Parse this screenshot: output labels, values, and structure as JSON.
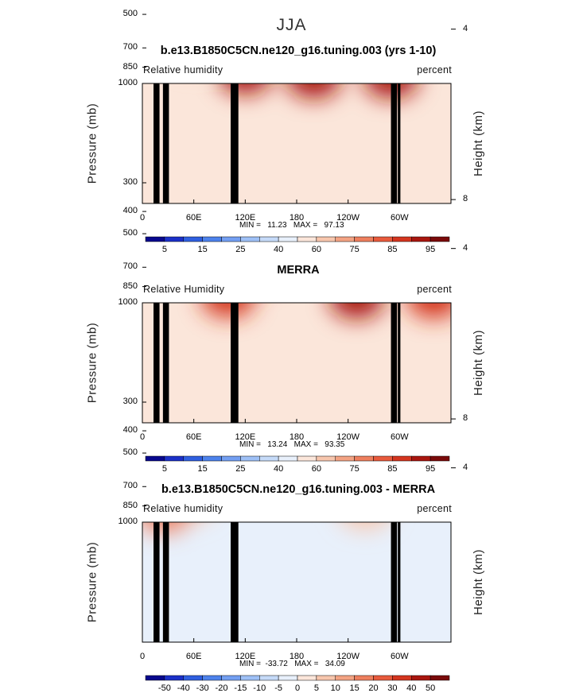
{
  "figure_title": "JJA",
  "colors": {
    "full_scale": [
      "#08088e",
      "#1b30c8",
      "#2f5fe0",
      "#4d82ec",
      "#739ff2",
      "#9ec0f6",
      "#c5daf8",
      "#e8f0fb",
      "#fbe6da",
      "#f7c6ad",
      "#f3a383",
      "#ee7f5e",
      "#e85a3c",
      "#d4351f",
      "#a9160f",
      "#7a0a0a"
    ],
    "diff_scale": [
      "#08088e",
      "#1b30c8",
      "#2f5fe0",
      "#4d82ec",
      "#739ff2",
      "#9ec0f6",
      "#c5daf8",
      "#e8f0fb",
      "#fbe6da",
      "#f7c6ad",
      "#f3a383",
      "#ee7f5e",
      "#e85a3c",
      "#d4351f",
      "#a9160f",
      "#7a0a0a"
    ],
    "topography": "#000000"
  },
  "chart_data": [
    {
      "type": "heatmap",
      "title": "b.e13.B1850C5CN.ne120_g16.tuning.003 (yrs 1-10)",
      "left_label": "Relative humidity",
      "right_label": "percent",
      "ylabel": "Pressure (mb)",
      "ylabel_right": "Height (km)",
      "x_ticks": [
        "0",
        "60E",
        "120E",
        "180",
        "120W",
        "60W"
      ],
      "y_ticks": [
        "300",
        "400",
        "500",
        "700",
        "850",
        "1000"
      ],
      "height_ticks": [
        "8",
        "4"
      ],
      "min_label": "MIN =   11.23   MAX =   97.13",
      "colorbar_labels": [
        "5",
        "15",
        "25",
        "40",
        "60",
        "75",
        "85",
        "95"
      ],
      "features": [
        {
          "lon": 180,
          "p": 420,
          "value": 12
        },
        {
          "lon": 210,
          "p": 430,
          "value": 18
        },
        {
          "lon": 330,
          "p": 380,
          "value": 20
        },
        {
          "lon": 100,
          "p": 450,
          "value": 30
        },
        {
          "lon": 80,
          "p": 500,
          "value": 62
        },
        {
          "lon": 35,
          "p": 550,
          "value": 78
        },
        {
          "lon": 60,
          "p": 700,
          "value": 60
        },
        {
          "lon": 120,
          "p": 900,
          "value": 88
        },
        {
          "lon": 200,
          "p": 940,
          "value": 92
        },
        {
          "lon": 300,
          "p": 600,
          "value": 78
        },
        {
          "lon": 290,
          "p": 940,
          "value": 90
        }
      ]
    },
    {
      "type": "heatmap",
      "title": "MERRA",
      "left_label": "Relative Humidity",
      "right_label": "percent",
      "ylabel": "Pressure (mb)",
      "ylabel_right": "Height (km)",
      "x_ticks": [
        "0",
        "60E",
        "120E",
        "180",
        "120W",
        "60W"
      ],
      "y_ticks": [
        "300",
        "400",
        "500",
        "700",
        "850",
        "1000"
      ],
      "height_ticks": [
        "8",
        "4"
      ],
      "min_label": "MIN =   13.24   MAX =   93.35",
      "colorbar_labels": [
        "5",
        "15",
        "25",
        "40",
        "60",
        "75",
        "85",
        "95"
      ],
      "features": [
        {
          "lon": 235,
          "p": 420,
          "value": 14
        },
        {
          "lon": 345,
          "p": 420,
          "value": 25
        },
        {
          "lon": 45,
          "p": 420,
          "value": 22
        },
        {
          "lon": 20,
          "p": 600,
          "value": 72
        },
        {
          "lon": 140,
          "p": 680,
          "value": 80
        },
        {
          "lon": 110,
          "p": 680,
          "value": 70
        },
        {
          "lon": 290,
          "p": 620,
          "value": 80
        },
        {
          "lon": 100,
          "p": 940,
          "value": 86
        },
        {
          "lon": 250,
          "p": 950,
          "value": 88
        },
        {
          "lon": 340,
          "p": 950,
          "value": 86
        }
      ]
    },
    {
      "type": "heatmap",
      "title": "b.e13.B1850C5CN.ne120_g16.tuning.003 - MERRA",
      "left_label": "Relative humidity",
      "right_label": "percent",
      "ylabel": "Pressure (mb)",
      "ylabel_right": "Height (km)",
      "x_ticks": [
        "0",
        "60E",
        "120E",
        "180",
        "120W",
        "60W"
      ],
      "y_ticks": [
        "300",
        "400",
        "500",
        "700",
        "850",
        "1000"
      ],
      "height_ticks": [
        "8",
        "4"
      ],
      "min_label": "MIN =  -33.72   MAX =   34.09",
      "colorbar_labels": [
        "-50",
        "-40",
        "-30",
        "-20",
        "-15",
        "-10",
        "-5",
        "0",
        "5",
        "10",
        "15",
        "20",
        "30",
        "40",
        "50"
      ],
      "features": [
        {
          "lon": 155,
          "p": 600,
          "value": -32
        },
        {
          "lon": 165,
          "p": 450,
          "value": -22
        },
        {
          "lon": 10,
          "p": 500,
          "value": -20
        },
        {
          "lon": 295,
          "p": 420,
          "value": -18
        },
        {
          "lon": 70,
          "p": 380,
          "value": 25
        },
        {
          "lon": 30,
          "p": 700,
          "value": 10
        },
        {
          "lon": 55,
          "p": 800,
          "value": 8
        },
        {
          "lon": 260,
          "p": 870,
          "value": 8
        },
        {
          "lon": 25,
          "p": 900,
          "value": 20
        },
        {
          "lon": 220,
          "p": 650,
          "value": -6
        }
      ]
    }
  ]
}
